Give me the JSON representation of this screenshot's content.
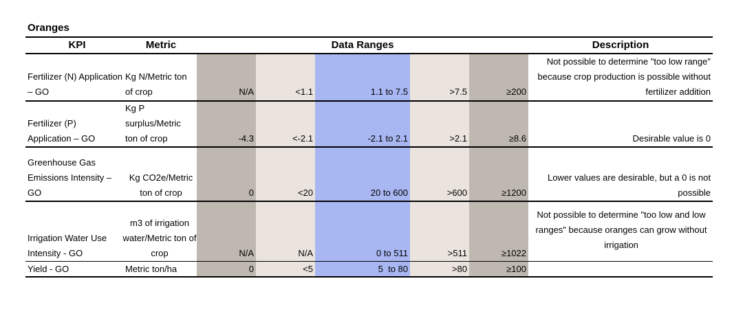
{
  "title": "Oranges",
  "headers": {
    "kpi": "KPI",
    "metric": "Metric",
    "ranges": "Data Ranges",
    "description": "Description"
  },
  "rows": [
    {
      "kpi": "Fertilizer (N) Application – GO",
      "metric": "Kg N/Metric ton of crop",
      "r1": "N/A",
      "r2": "<1.1",
      "r3": "1.1 to 7.5",
      "r4": ">7.5",
      "r5": "≥200",
      "description": "Not possible to determine \"too low range\" because crop production is possible without fertilizer addition"
    },
    {
      "kpi": "Fertilizer (P) Application – GO",
      "metric": "Kg P surplus/Metric ton of crop",
      "r1": "-4.3",
      "r2": "<-2.1",
      "r3": "-2.1 to 2.1",
      "r4": ">2.1",
      "r5": "≥8.6",
      "description": "Desirable value is 0"
    },
    {
      "kpi": "Greenhouse Gas Emissions Intensity – GO",
      "metric": "Kg CO2e/Metric ton of crop",
      "r1": "0",
      "r2": "<20",
      "r3": "20 to 600",
      "r4": ">600",
      "r5": "≥1200",
      "description": "Lower values are desirable, but a 0 is not possible"
    },
    {
      "kpi": "Irrigation Water Use Intensity - GO",
      "metric": "m3 of irrigation water/Metric ton of crop",
      "r1": "N/A",
      "r2": "N/A",
      "r3": "0 to 511",
      "r4": ">511",
      "r5": "≥1022",
      "description": "Not possible to determine \"too low and low ranges\" because oranges can grow without irrigation"
    },
    {
      "kpi": "Yield - GO",
      "metric": "Metric ton/ha",
      "r1": "0",
      "r2": "<5",
      "r3": "5  to 80",
      "r4": ">80",
      "r5": "≥100",
      "description": ""
    }
  ]
}
